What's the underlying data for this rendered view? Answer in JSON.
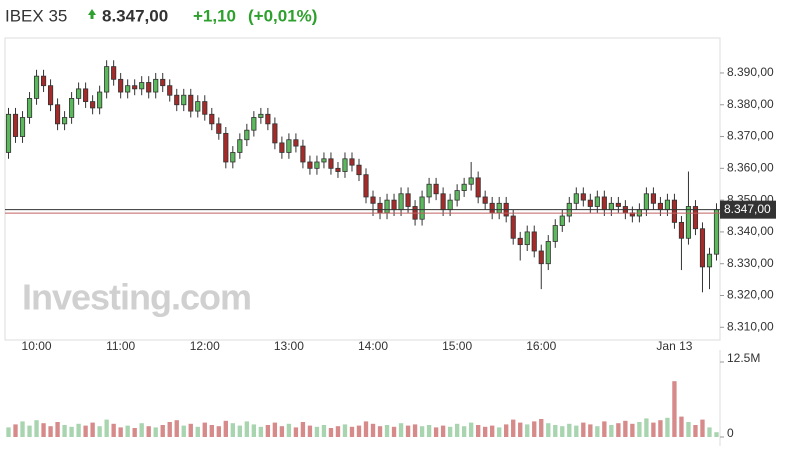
{
  "chart_data": {
    "type": "candlestick",
    "title": "IBEX 35",
    "last_price": {
      "value": 8347,
      "label": "8.347,00"
    },
    "change": "+1,10",
    "change_percent": "(+0,01%)",
    "watermark": "Investing.com",
    "reference_line": 8345.9,
    "colors": {
      "up": "#5cb85c",
      "down": "#a52a2a",
      "outline": "#333333",
      "volume_up": "#a8d5b0",
      "volume_down": "#d68a8a",
      "last_line": "#333333",
      "reference": "#c06060"
    },
    "categories": [
      null,
      null,
      null,
      null,
      "10:00",
      null,
      null,
      null,
      null,
      null,
      null,
      null,
      null,
      null,
      null,
      null,
      "11:00",
      null,
      null,
      null,
      null,
      null,
      null,
      null,
      null,
      null,
      null,
      null,
      "12:00",
      null,
      null,
      null,
      null,
      null,
      null,
      null,
      null,
      null,
      null,
      null,
      "13:00",
      null,
      null,
      null,
      null,
      null,
      null,
      null,
      null,
      null,
      null,
      null,
      "14:00",
      null,
      null,
      null,
      null,
      null,
      null,
      null,
      null,
      null,
      null,
      null,
      "15:00",
      null,
      null,
      null,
      null,
      null,
      null,
      null,
      null,
      null,
      null,
      null,
      "16:00",
      null,
      null,
      null,
      null,
      null,
      null,
      null,
      null,
      null,
      null,
      null,
      null,
      null,
      null,
      null,
      null,
      null,
      null,
      "Jan 13",
      null,
      null,
      null,
      null,
      null,
      null
    ],
    "open": [
      8365,
      8377,
      8370,
      8376,
      8382,
      8389,
      8386,
      8380,
      8374,
      8376,
      8382,
      8385,
      8381,
      8379,
      8384,
      8392,
      8388,
      8384,
      8386,
      8385,
      8387,
      8384,
      8388,
      8386,
      8383,
      8380,
      8383,
      8378,
      8381,
      8377,
      8374,
      8371,
      8362,
      8365,
      8369,
      8372,
      8376,
      8377,
      8374,
      8368,
      8365,
      8369,
      8367,
      8362,
      8360,
      8362,
      8363,
      8360,
      8359,
      8363,
      8361,
      8358,
      8351,
      8349,
      8346,
      8350,
      8347,
      8352,
      8348,
      8344,
      8351,
      8355,
      8352,
      8347,
      8350,
      8353,
      8355,
      8357,
      8351,
      8349,
      8346,
      8349,
      8345,
      8338,
      8336,
      8340,
      8334,
      8330,
      8337,
      8342,
      8345,
      8349,
      8352,
      8350,
      8348,
      8351,
      8347,
      8349,
      8348,
      8346,
      8345,
      8347,
      8352,
      8349,
      8347,
      8350,
      8343,
      8338,
      8348,
      8341,
      8329,
      8333
    ],
    "high": [
      8379,
      8379,
      8378,
      8384,
      8391,
      8391,
      8388,
      8382,
      8378,
      8384,
      8387,
      8387,
      8383,
      8386,
      8394,
      8394,
      8390,
      8388,
      8388,
      8389,
      8389,
      8390,
      8390,
      8388,
      8385,
      8385,
      8385,
      8383,
      8383,
      8379,
      8376,
      8373,
      8367,
      8371,
      8374,
      8378,
      8379,
      8379,
      8376,
      8370,
      8371,
      8371,
      8369,
      8364,
      8364,
      8365,
      8365,
      8362,
      8365,
      8365,
      8363,
      8360,
      8353,
      8351,
      8352,
      8352,
      8354,
      8354,
      8350,
      8353,
      8357,
      8357,
      8354,
      8352,
      8355,
      8357,
      8362,
      8359,
      8353,
      8351,
      8351,
      8351,
      8347,
      8340,
      8342,
      8342,
      8336,
      8339,
      8344,
      8347,
      8351,
      8354,
      8354,
      8352,
      8353,
      8353,
      8351,
      8351,
      8350,
      8348,
      8349,
      8354,
      8354,
      8351,
      8352,
      8352,
      8345,
      8359,
      8350,
      8343,
      8335,
      8349
    ],
    "low": [
      8363,
      8368,
      8368,
      8374,
      8380,
      8384,
      8378,
      8372,
      8372,
      8374,
      8380,
      8379,
      8377,
      8377,
      8382,
      8386,
      8382,
      8382,
      8383,
      8383,
      8382,
      8382,
      8384,
      8381,
      8378,
      8378,
      8376,
      8376,
      8375,
      8372,
      8369,
      8360,
      8360,
      8363,
      8367,
      8370,
      8374,
      8372,
      8366,
      8363,
      8363,
      8365,
      8360,
      8358,
      8358,
      8360,
      8358,
      8357,
      8357,
      8359,
      8356,
      8349,
      8345,
      8344,
      8344,
      8345,
      8345,
      8346,
      8342,
      8342,
      8349,
      8350,
      8345,
      8345,
      8348,
      8351,
      8353,
      8349,
      8347,
      8344,
      8344,
      8343,
      8336,
      8331,
      8334,
      8332,
      8322,
      8328,
      8335,
      8340,
      8343,
      8347,
      8348,
      8346,
      8346,
      8345,
      8345,
      8346,
      8344,
      8343,
      8343,
      8345,
      8347,
      8345,
      8345,
      8341,
      8328,
      8336,
      8339,
      8321,
      8322,
      8331
    ],
    "close": [
      8377,
      8370,
      8376,
      8382,
      8389,
      8386,
      8380,
      8374,
      8376,
      8382,
      8385,
      8381,
      8379,
      8384,
      8392,
      8388,
      8384,
      8386,
      8385,
      8387,
      8384,
      8388,
      8386,
      8383,
      8380,
      8383,
      8378,
      8381,
      8377,
      8374,
      8371,
      8362,
      8365,
      8369,
      8372,
      8376,
      8377,
      8374,
      8368,
      8365,
      8369,
      8367,
      8362,
      8360,
      8362,
      8363,
      8360,
      8359,
      8363,
      8361,
      8358,
      8351,
      8349,
      8346,
      8350,
      8347,
      8352,
      8348,
      8344,
      8351,
      8355,
      8352,
      8347,
      8350,
      8353,
      8355,
      8357,
      8351,
      8349,
      8346,
      8349,
      8345,
      8338,
      8336,
      8340,
      8334,
      8330,
      8337,
      8342,
      8345,
      8349,
      8352,
      8350,
      8348,
      8351,
      8347,
      8349,
      8348,
      8346,
      8345,
      8347,
      8352,
      8349,
      8347,
      8350,
      8343,
      8338,
      8348,
      8341,
      8329,
      8333,
      8347
    ],
    "volume": [
      1.6,
      2.1,
      2.6,
      1.9,
      2.8,
      2.3,
      1.8,
      2.5,
      2.0,
      1.7,
      2.2,
      1.9,
      2.4,
      1.8,
      2.9,
      2.2,
      1.6,
      1.9,
      1.5,
      2.3,
      1.8,
      1.6,
      2.0,
      2.5,
      2.8,
      1.9,
      2.2,
      1.7,
      2.4,
      2.0,
      1.8,
      2.7,
      2.3,
      1.9,
      2.6,
      2.1,
      1.7,
      2.0,
      2.4,
      1.8,
      2.2,
      1.6,
      2.5,
      1.9,
      1.7,
      2.0,
      1.5,
      1.8,
      2.1,
      1.7,
      1.9,
      2.6,
      2.2,
      1.8,
      2.0,
      1.7,
      2.3,
      1.9,
      2.1,
      1.8,
      2.0,
      1.6,
      1.9,
      1.7,
      2.2,
      1.8,
      2.4,
      2.0,
      1.7,
      1.9,
      1.6,
      2.1,
      2.9,
      2.4,
      2.1,
      2.6,
      3.0,
      2.3,
      2.0,
      1.8,
      2.2,
      1.9,
      2.4,
      2.1,
      1.8,
      2.6,
      2.0,
      2.3,
      2.7,
      2.2,
      2.5,
      3.1,
      2.4,
      2.8,
      3.2,
      9.3,
      3.4,
      2.5,
      2.0,
      2.9,
      1.6,
      0.8
    ],
    "ylim": [
      8306,
      8401
    ],
    "yticks": [
      {
        "value": 8310,
        "label": "8.310,00"
      },
      {
        "value": 8320,
        "label": "8.320,00"
      },
      {
        "value": 8330,
        "label": "8.330,00"
      },
      {
        "value": 8340,
        "label": "8.340,00"
      },
      {
        "value": 8350,
        "label": "8.350,00"
      },
      {
        "value": 8360,
        "label": "8.360,00"
      },
      {
        "value": 8370,
        "label": "8.370,00"
      },
      {
        "value": 8380,
        "label": "8.380,00"
      },
      {
        "value": 8390,
        "label": "8.390,00"
      }
    ],
    "volume_ylim": [
      0,
      12.5
    ],
    "volume_yticks": [
      0,
      {
        "value": 12.5,
        "label": "12.5M"
      }
    ]
  }
}
